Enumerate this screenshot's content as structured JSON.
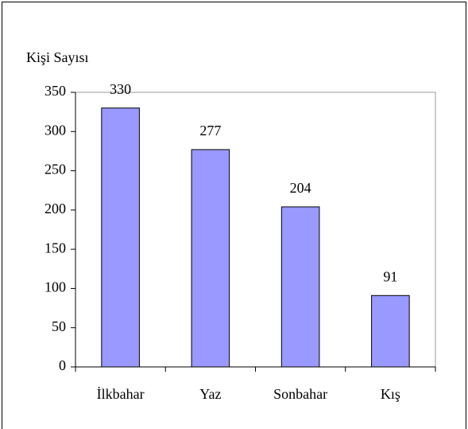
{
  "chart_data": {
    "type": "bar",
    "y_axis_label": "Kişi Sayısı",
    "categories": [
      "İlkbahar",
      "Yaz",
      "Sonbahar",
      "Kış"
    ],
    "values": [
      330,
      277,
      204,
      91
    ],
    "color": "#9999ff",
    "ylim": [
      0,
      350
    ],
    "yticks": [
      0,
      50,
      100,
      150,
      200,
      250,
      300,
      350
    ],
    "grid": false
  }
}
